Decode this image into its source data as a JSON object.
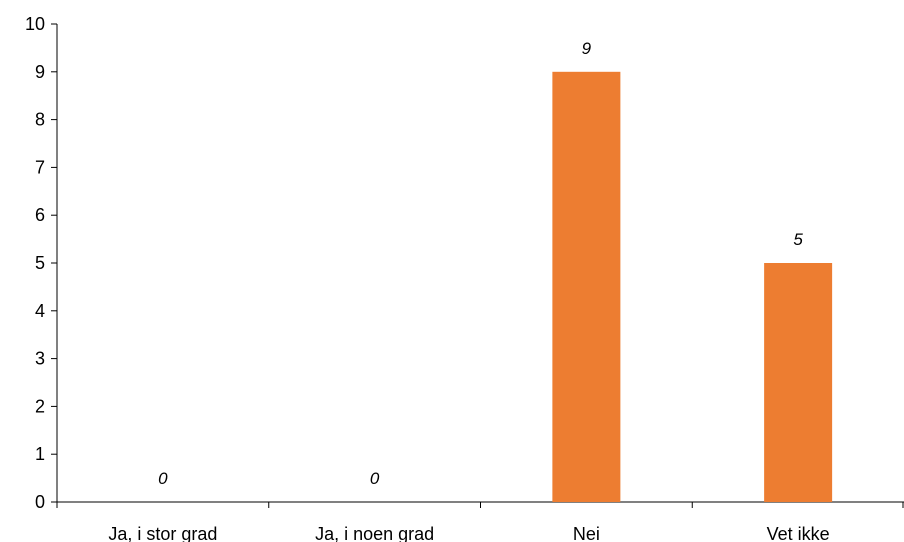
{
  "chart_data": {
    "type": "bar",
    "categories": [
      "Ja, i stor grad",
      "Ja, i noen grad",
      "Nei",
      "Vet ikke"
    ],
    "values": [
      0,
      0,
      9,
      5
    ],
    "data_labels": [
      "0",
      "0",
      "9",
      "5"
    ],
    "title": "",
    "xlabel": "",
    "ylabel": "",
    "ylim": [
      0,
      10
    ],
    "yticks": [
      0,
      1,
      2,
      3,
      4,
      5,
      6,
      7,
      8,
      9,
      10
    ],
    "grid": false,
    "legend": "none",
    "bar_color": "#ED7D31",
    "axis_color": "#000000"
  }
}
